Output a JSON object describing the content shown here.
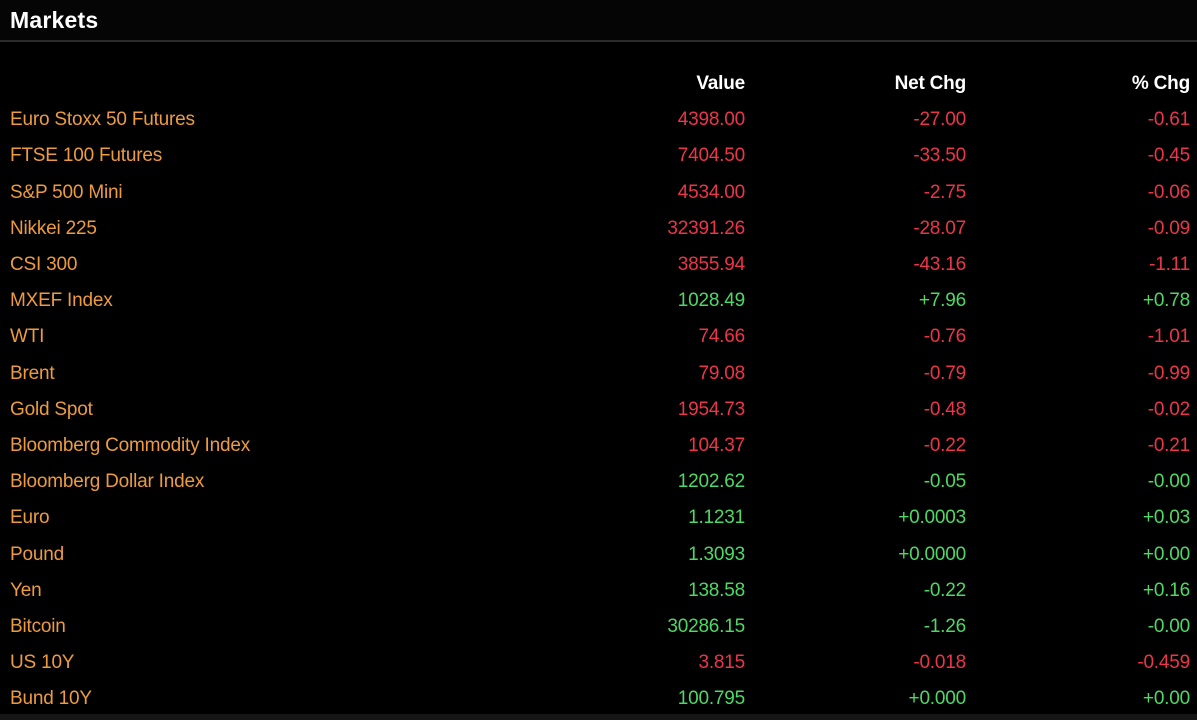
{
  "window": {
    "title": "Markets"
  },
  "colors": {
    "background": "#000000",
    "title_text": "#ffffff",
    "column_header_text": "#ffffff",
    "row_label": "#ee9b40",
    "negative_value": "#ed3549",
    "positive_value": "#4dd964",
    "divider": "#2a2a2a",
    "bottom_bar": "#161616"
  },
  "table": {
    "columns": [
      "",
      "Value",
      "Net Chg",
      "% Chg"
    ],
    "rows": [
      {
        "label": "Euro Stoxx 50 Futures",
        "value": "4398.00",
        "net_chg": "-27.00",
        "pct_chg": "-0.61",
        "trend": "negative"
      },
      {
        "label": "FTSE 100 Futures",
        "value": "7404.50",
        "net_chg": "-33.50",
        "pct_chg": "-0.45",
        "trend": "negative"
      },
      {
        "label": "S&P 500 Mini",
        "value": "4534.00",
        "net_chg": "-2.75",
        "pct_chg": "-0.06",
        "trend": "negative"
      },
      {
        "label": "Nikkei 225",
        "value": "32391.26",
        "net_chg": "-28.07",
        "pct_chg": "-0.09",
        "trend": "negative"
      },
      {
        "label": "CSI 300",
        "value": "3855.94",
        "net_chg": "-43.16",
        "pct_chg": "-1.11",
        "trend": "negative"
      },
      {
        "label": "MXEF Index",
        "value": "1028.49",
        "net_chg": "+7.96",
        "pct_chg": "+0.78",
        "trend": "positive"
      },
      {
        "label": "WTI",
        "value": "74.66",
        "net_chg": "-0.76",
        "pct_chg": "-1.01",
        "trend": "negative"
      },
      {
        "label": "Brent",
        "value": "79.08",
        "net_chg": "-0.79",
        "pct_chg": "-0.99",
        "trend": "negative"
      },
      {
        "label": "Gold Spot",
        "value": "1954.73",
        "net_chg": "-0.48",
        "pct_chg": "-0.02",
        "trend": "negative"
      },
      {
        "label": "Bloomberg Commodity Index",
        "value": "104.37",
        "net_chg": "-0.22",
        "pct_chg": "-0.21",
        "trend": "negative"
      },
      {
        "label": "Bloomberg Dollar Index",
        "value": "1202.62",
        "net_chg": "-0.05",
        "pct_chg": "-0.00",
        "trend": "positive"
      },
      {
        "label": "Euro",
        "value": "1.1231",
        "net_chg": "+0.0003",
        "pct_chg": "+0.03",
        "trend": "positive"
      },
      {
        "label": "Pound",
        "value": "1.3093",
        "net_chg": "+0.0000",
        "pct_chg": "+0.00",
        "trend": "positive"
      },
      {
        "label": "Yen",
        "value": "138.58",
        "net_chg": "-0.22",
        "pct_chg": "+0.16",
        "trend": "positive"
      },
      {
        "label": "Bitcoin",
        "value": "30286.15",
        "net_chg": "-1.26",
        "pct_chg": "-0.00",
        "trend": "positive"
      },
      {
        "label": "US 10Y",
        "value": "3.815",
        "net_chg": "-0.018",
        "pct_chg": "-0.459",
        "trend": "negative"
      },
      {
        "label": "Bund 10Y",
        "value": "100.795",
        "net_chg": "+0.000",
        "pct_chg": "+0.00",
        "trend": "positive"
      }
    ]
  }
}
